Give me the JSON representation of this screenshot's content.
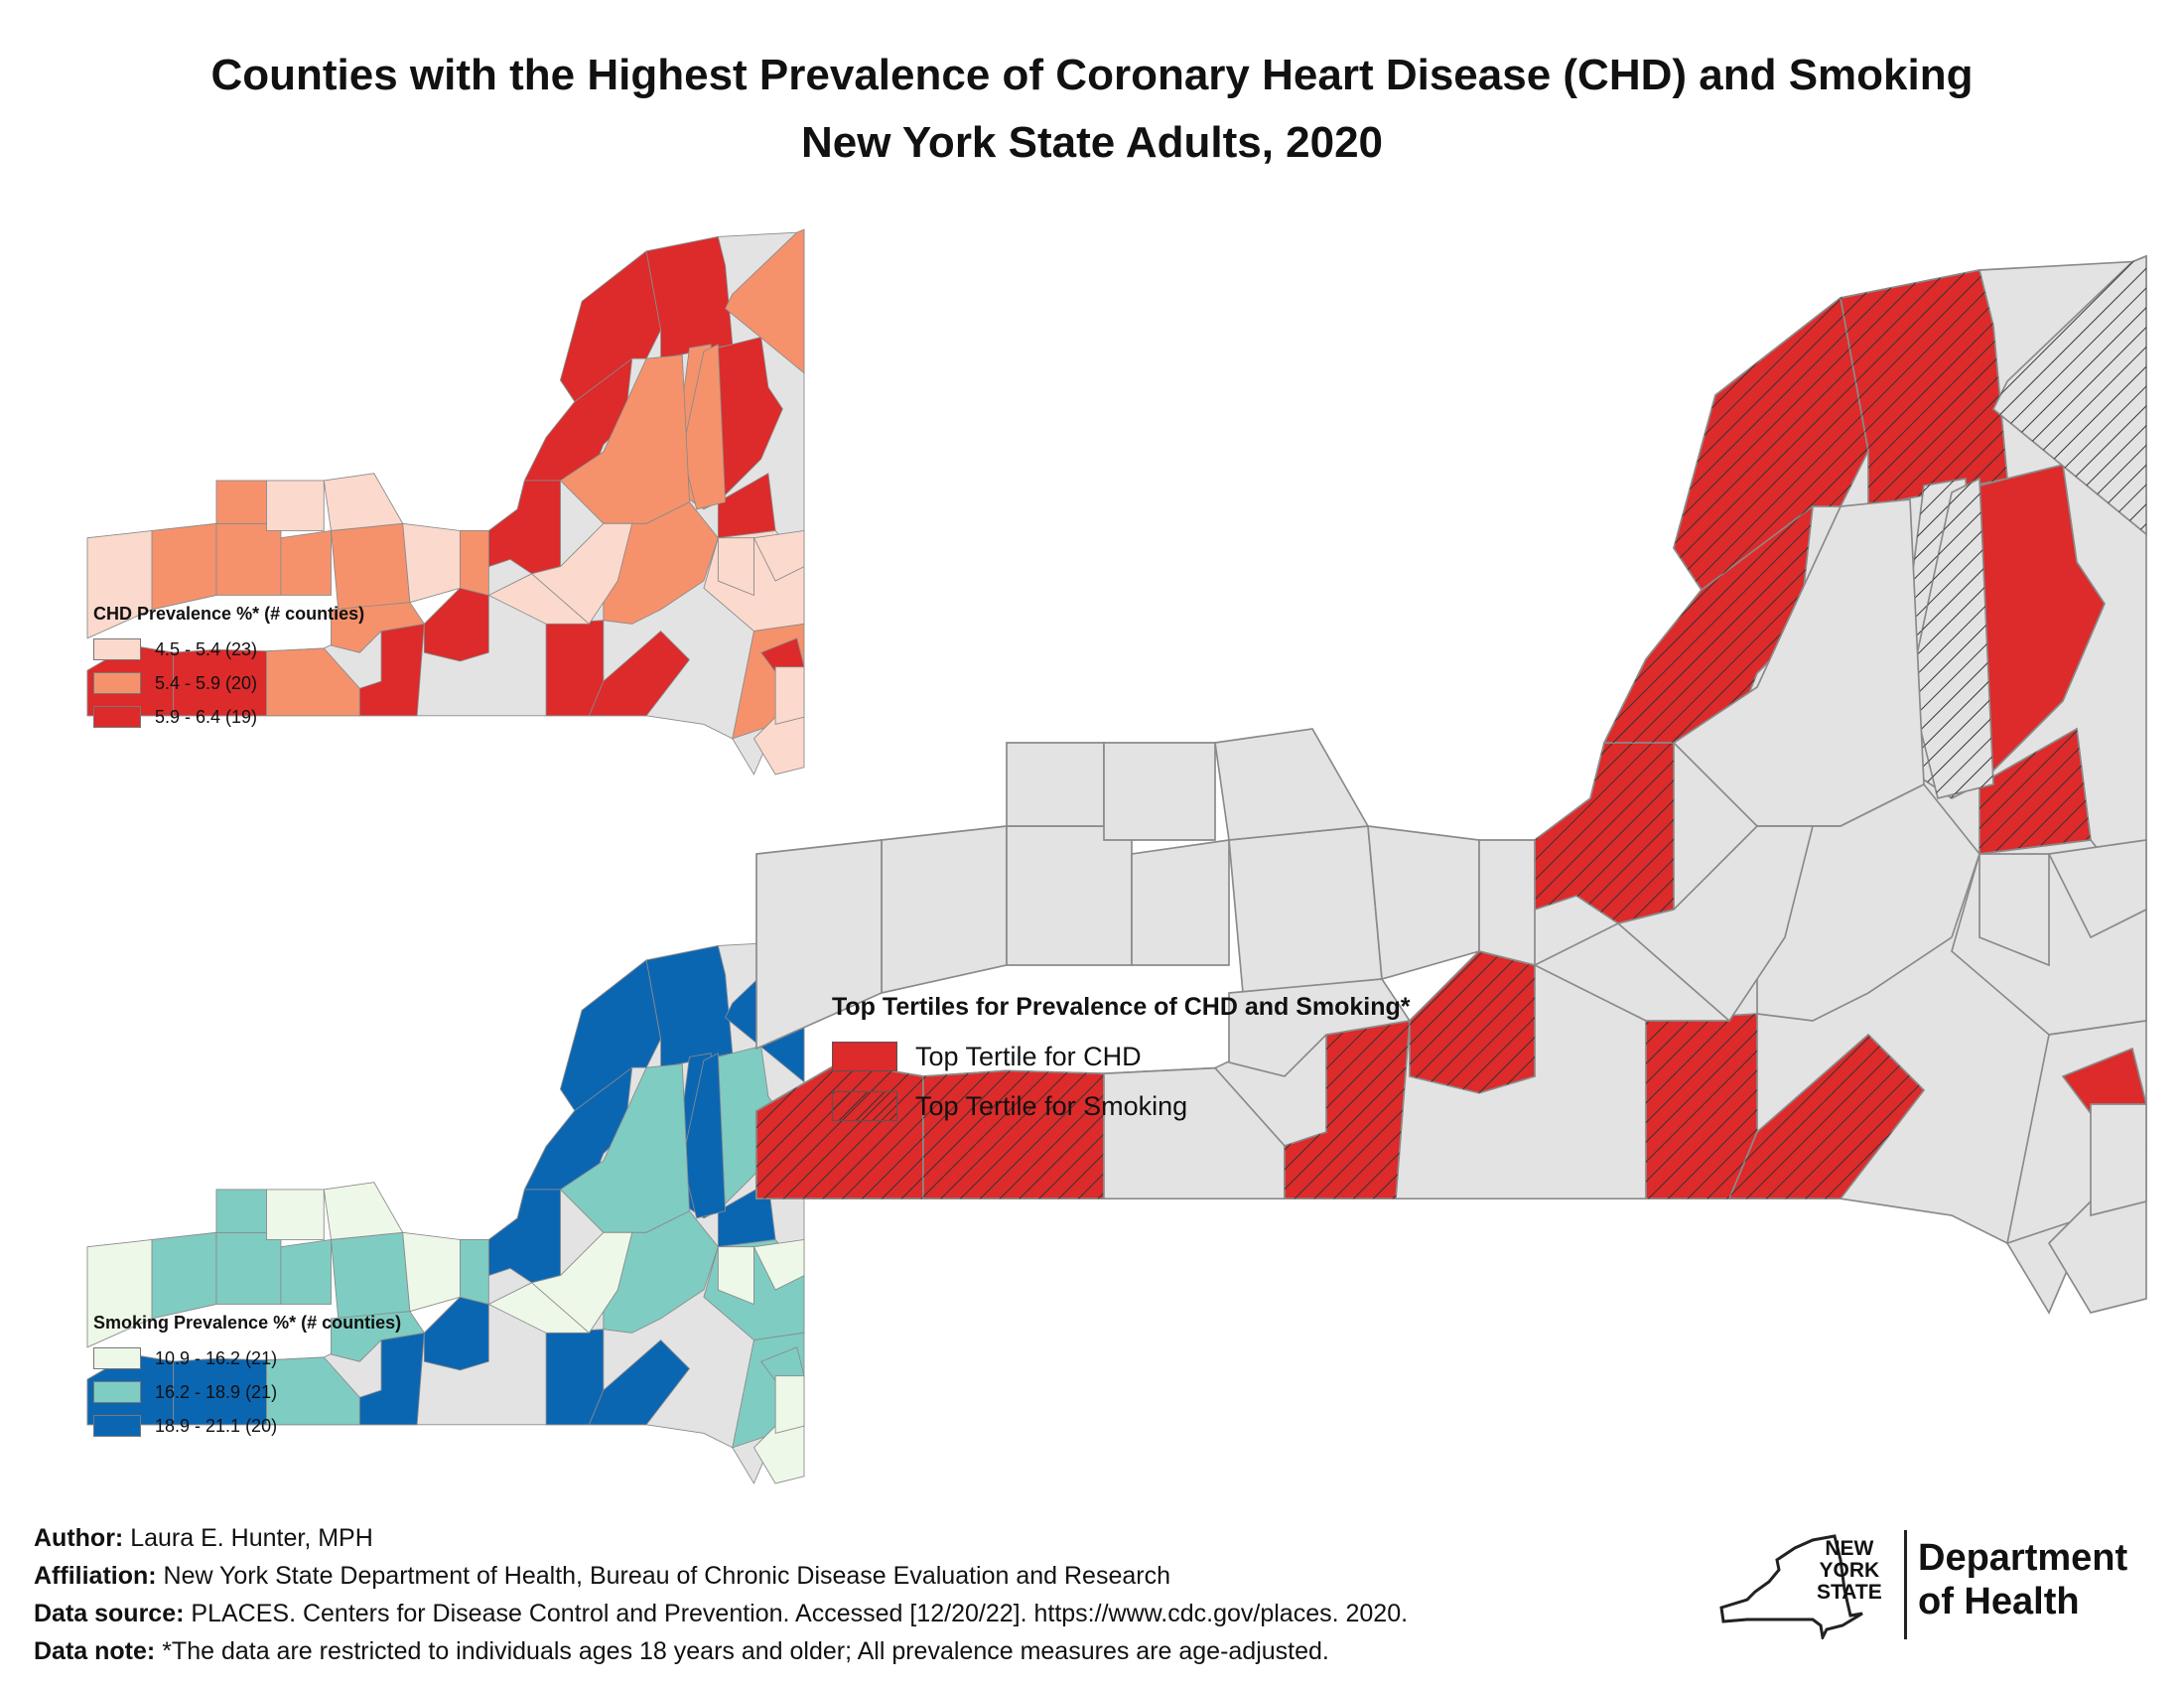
{
  "title": {
    "line1": "Counties with the Highest Prevalence of Coronary Heart Disease (CHD) and Smoking",
    "line2": "New York State Adults, 2020"
  },
  "colors": {
    "chd_low": "#fbd9cc",
    "chd_mid": "#f5926c",
    "chd_high": "#dd2a2a",
    "smk_low": "#eef8e8",
    "smk_mid": "#7fccc2",
    "smk_high": "#0b66b2",
    "grey": "#e3e3e3",
    "border": "#8a8a8a"
  },
  "chd_legend": {
    "heading": "CHD Prevalence %* (# counties)",
    "items": [
      "4.5 - 5.4 (23)",
      "5.4 - 5.9 (20)",
      "5.9 - 6.4 (19)"
    ]
  },
  "smoking_legend": {
    "heading": "Smoking Prevalence %* (# counties)",
    "items": [
      "10.9 - 16.2 (21)",
      "16.2 - 18.9 (21)",
      "18.9 - 21.1 (20)"
    ]
  },
  "tertile_legend": {
    "heading": "Top Tertiles for Prevalence of CHD and Smoking*",
    "chd": "Top Tertile for CHD",
    "smoking": "Top Tertile for Smoking"
  },
  "footer": {
    "author_label": "Author:",
    "author": "Laura E. Hunter, MPH",
    "affiliation_label": "Affiliation:",
    "affiliation": "New York State Department of Health, Bureau of Chronic Disease Evaluation and Research",
    "source_label": "Data source:",
    "source": "PLACES. Centers for Disease Control and Prevention. Accessed [12/20/22]. https://www.cdc.gov/places. 2020.",
    "note_label": "Data note:",
    "note": "*The data are restricted to individuals ages 18 years and older; All prevalence measures are age-adjusted."
  },
  "logo": {
    "line1": "NEW",
    "line2": "YORK",
    "line3": "STATE",
    "dept1": "Department",
    "dept2": "of Health"
  },
  "counties": [
    {
      "chd": 2,
      "smk": 2,
      "top_chd": true,
      "top_smk": true
    },
    {
      "chd": 2,
      "smk": 2,
      "top_chd": true,
      "top_smk": true
    },
    {
      "chd": 1,
      "smk": 1,
      "top_chd": false,
      "top_smk": false
    },
    {
      "chd": 2,
      "smk": 2,
      "top_chd": true,
      "top_smk": true
    },
    {
      "chd": 2,
      "smk": 2,
      "top_chd": true,
      "top_smk": true
    },
    {
      "chd": 2,
      "smk": 2,
      "top_chd": true,
      "top_smk": true
    },
    {
      "chd": 2,
      "smk": 2,
      "top_chd": true,
      "top_smk": true
    },
    {
      "chd": 2,
      "smk": 2,
      "top_chd": true,
      "top_smk": true
    },
    {
      "chd": 2,
      "smk": 2,
      "top_chd": true,
      "top_smk": true
    },
    {
      "chd": 1,
      "smk": 2,
      "top_chd": false,
      "top_smk": true
    },
    {
      "chd": 2,
      "smk": 1,
      "top_chd": true,
      "top_smk": false
    },
    {
      "chd": 2,
      "smk": 2,
      "top_chd": true,
      "top_smk": true
    },
    {
      "chd": 2,
      "smk": 2,
      "top_chd": true,
      "top_smk": true
    },
    {
      "chd": 2,
      "smk": 2,
      "top_chd": true,
      "top_smk": true
    },
    {
      "chd": 1,
      "smk": 2,
      "top_chd": false,
      "top_smk": true
    },
    {
      "chd": 1,
      "smk": 2,
      "top_chd": false,
      "top_smk": true
    },
    {
      "chd": 1,
      "smk": 1,
      "top_chd": false,
      "top_smk": false
    },
    {
      "chd": 1,
      "smk": 1,
      "top_chd": false,
      "top_smk": false
    },
    {
      "chd": 0,
      "smk": 1,
      "top_chd": false,
      "top_smk": false
    },
    {
      "chd": 1,
      "smk": 1,
      "top_chd": false,
      "top_smk": false
    },
    {
      "chd": 0,
      "smk": 0,
      "top_chd": false,
      "top_smk": false
    },
    {
      "chd": 1,
      "smk": 1,
      "top_chd": false,
      "top_smk": false
    },
    {
      "chd": 1,
      "smk": 1,
      "top_chd": false,
      "top_smk": false
    },
    {
      "chd": 0,
      "smk": 0,
      "top_chd": false,
      "top_smk": false
    },
    {
      "chd": 1,
      "smk": 1,
      "top_chd": false,
      "top_smk": false
    },
    {
      "chd": 1,
      "smk": 1,
      "top_chd": false,
      "top_smk": false
    },
    {
      "chd": 0,
      "smk": 0,
      "top_chd": false,
      "top_smk": false
    },
    {
      "chd": 1,
      "smk": 1,
      "top_chd": false,
      "top_smk": false
    },
    {
      "chd": 1,
      "smk": 1,
      "top_chd": false,
      "top_smk": false
    },
    {
      "chd": 0,
      "smk": 0,
      "top_chd": false,
      "top_smk": false
    },
    {
      "chd": 0,
      "smk": 0,
      "top_chd": false,
      "top_smk": false
    },
    {
      "chd": 0,
      "smk": 0,
      "top_chd": false,
      "top_smk": false
    },
    {
      "chd": 0,
      "smk": 0,
      "top_chd": false,
      "top_smk": false
    },
    {
      "chd": 1,
      "smk": 1,
      "top_chd": false,
      "top_smk": false
    },
    {
      "chd": 0,
      "smk": 0,
      "top_chd": false,
      "top_smk": false
    },
    {
      "chd": 0,
      "smk": 0,
      "top_chd": false,
      "top_smk": false
    },
    {
      "chd": 2,
      "smk": 1,
      "top_chd": true,
      "top_smk": false
    },
    {
      "chd": 0,
      "smk": 0,
      "top_chd": false,
      "top_smk": false
    }
  ]
}
